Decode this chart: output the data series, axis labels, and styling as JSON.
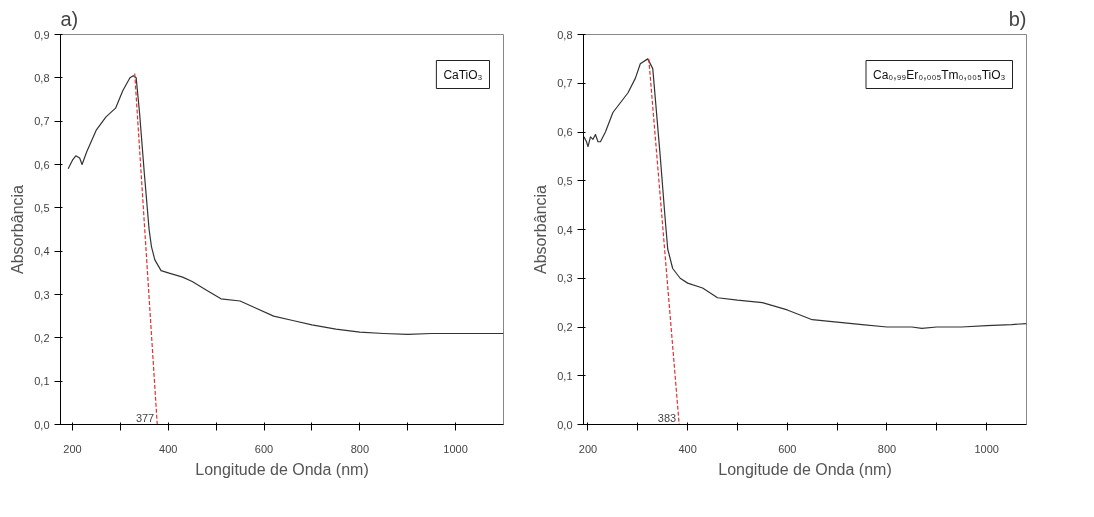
{
  "chart_data": [
    {
      "type": "line",
      "title": "a)",
      "xlabel": "Longitude de Onda (nm)",
      "ylabel": "Absorbância",
      "xlim": [
        175,
        1100
      ],
      "ylim": [
        0,
        0.9
      ],
      "xticks": [
        200,
        {
          "value": 300,
          "label": null
        },
        400,
        {
          "value": 500,
          "label": null
        },
        600,
        {
          "value": 700,
          "label": null
        },
        800,
        {
          "value": 900,
          "label": null
        },
        1000
      ],
      "yticks": [
        {
          "value": 0,
          "label": "0,0"
        },
        {
          "value": 0.1,
          "label": "0,1"
        },
        {
          "value": 0.2,
          "label": "0,2"
        },
        {
          "value": 0.3,
          "label": "0,3"
        },
        {
          "value": 0.4,
          "label": "0,4"
        },
        {
          "value": 0.5,
          "label": "0,5"
        },
        {
          "value": 0.6,
          "label": "0,6"
        },
        {
          "value": 0.7,
          "label": "0,7"
        },
        {
          "value": 0.8,
          "label": "0,8"
        },
        {
          "value": 0.9,
          "label": "0,9"
        }
      ],
      "grid": false,
      "marker": "none",
      "series": [
        {
          "color": "#333333",
          "line_style": "solid",
          "x": [
            191,
            200,
            207,
            215,
            220,
            230,
            250,
            270,
            290,
            305,
            320,
            327,
            333,
            340,
            350,
            360,
            365,
            372,
            385,
            400,
            430,
            450,
            480,
            510,
            550,
            580,
            620,
            660,
            700,
            750,
            800,
            850,
            900,
            950,
            1000,
            1050,
            1100
          ],
          "values": [
            0.59,
            0.61,
            0.62,
            0.615,
            0.6,
            0.63,
            0.68,
            0.71,
            0.73,
            0.77,
            0.8,
            0.805,
            0.8,
            0.72,
            0.58,
            0.45,
            0.41,
            0.38,
            0.355,
            0.35,
            0.34,
            0.33,
            0.31,
            0.29,
            0.285,
            0.27,
            0.25,
            0.24,
            0.23,
            0.22,
            0.213,
            0.21,
            0.208,
            0.21,
            0.21,
            0.21,
            0.21
          ]
        },
        {
          "type": "line",
          "color": "#e03030",
          "line_style": "dashed",
          "x": [
            330,
            377
          ],
          "values": [
            0.81,
            0
          ]
        }
      ],
      "annotations": [
        "CaTiO₃",
        {
          "text": "377",
          "x": 377,
          "y": 0
        }
      ]
    },
    {
      "type": "line",
      "title": "b)",
      "xlabel": "Longitude de Onda (nm)",
      "ylabel": "Absorbância",
      "xlim": [
        191,
        1080
      ],
      "ylim": [
        0,
        0.8
      ],
      "xticks": [
        200,
        {
          "value": 300,
          "label": null
        },
        400,
        {
          "value": 500,
          "label": null
        },
        600,
        {
          "value": 700,
          "label": null
        },
        800,
        {
          "value": 900,
          "label": null
        },
        1000
      ],
      "yticks": [
        {
          "value": 0,
          "label": "0,0"
        },
        {
          "value": 0.1,
          "label": "0,1"
        },
        {
          "value": 0.2,
          "label": "0,2"
        },
        {
          "value": 0.3,
          "label": "0,3"
        },
        {
          "value": 0.4,
          "label": "0,4"
        },
        {
          "value": 0.5,
          "label": "0,5"
        },
        {
          "value": 0.6,
          "label": "0,6"
        },
        {
          "value": 0.7,
          "label": "0,7"
        },
        {
          "value": 0.8,
          "label": "0,8"
        }
      ],
      "grid": false,
      "marker": "none",
      "series": [
        {
          "color": "#333333",
          "line_style": "solid",
          "x": [
            192,
            197,
            200,
            205,
            210,
            215,
            220,
            225,
            235,
            250,
            265,
            280,
            295,
            305,
            320,
            330,
            345,
            355,
            360,
            370,
            385,
            400,
            430,
            460,
            500,
            550,
            600,
            650,
            700,
            750,
            800,
            850,
            870,
            900,
            950,
            1000,
            1050,
            1080
          ],
          "values": [
            0.59,
            0.58,
            0.57,
            0.59,
            0.585,
            0.595,
            0.58,
            0.58,
            0.6,
            0.64,
            0.66,
            0.68,
            0.71,
            0.74,
            0.75,
            0.73,
            0.55,
            0.42,
            0.36,
            0.32,
            0.3,
            0.29,
            0.28,
            0.26,
            0.255,
            0.25,
            0.235,
            0.215,
            0.21,
            0.205,
            0.2,
            0.2,
            0.197,
            0.2,
            0.2,
            0.203,
            0.205,
            0.207
          ]
        },
        {
          "type": "line",
          "color": "#e03030",
          "line_style": "dashed",
          "x": [
            322,
            383
          ],
          "values": [
            0.75,
            0
          ]
        }
      ],
      "annotations": [
        "Ca₀,₉₉Er₀,₀₀₅Tm₀,₀₀₅TiO₃",
        {
          "text": "383",
          "x": 383,
          "y": 0
        }
      ]
    }
  ]
}
